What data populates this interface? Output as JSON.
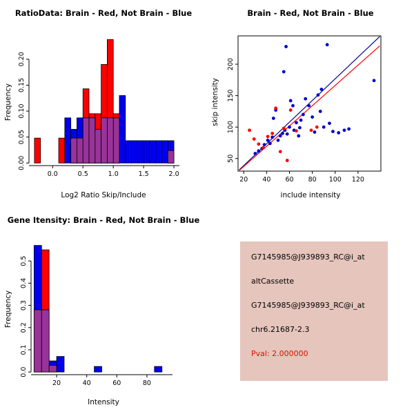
{
  "window": {
    "background": "#FFFFFF"
  },
  "colors": {
    "brain_red": "#FF0000",
    "not_brain_blue": "#0000EE",
    "overlap_purple": "#993399",
    "scatter_blue": "#0000CD",
    "regression_navy": "#00008B",
    "regression_red": "#FF0000",
    "info_bg": "#E5C5BC",
    "pval_red": "#DD1100",
    "text_black": "#000000"
  },
  "chart_data": [
    {
      "type": "bar",
      "subtype": "overlaid-histogram",
      "title": "RatioData: Brain - Red, Not Brain - Blue",
      "xlabel": "Log2 Ratio Skip/Include",
      "ylabel": "Frequency",
      "xlim": [
        -0.39,
        2.09
      ],
      "ylim": [
        -0.005,
        0.245
      ],
      "bin_width": 0.1,
      "xticks": [
        0,
        0.5,
        1,
        1.5,
        2
      ],
      "xtick_labels": [
        "0.0",
        "0.5",
        "1.0",
        "1.5",
        "2.0"
      ],
      "yticks": [
        0,
        0.05,
        0.1,
        0.15,
        0.2
      ],
      "ytick_labels": [
        "0.00",
        "0.05",
        "0.10",
        "0.15",
        "0.20"
      ],
      "overlap_color": "#993399",
      "series": [
        {
          "name": "Brain",
          "color": "#FF0000",
          "bins": [
            [
              -0.3,
              0.048
            ],
            [
              0.1,
              0.048
            ],
            [
              0.3,
              0.048
            ],
            [
              0.4,
              0.048
            ],
            [
              0.5,
              0.143
            ],
            [
              0.6,
              0.095
            ],
            [
              0.7,
              0.095
            ],
            [
              0.8,
              0.19
            ],
            [
              0.9,
              0.238
            ],
            [
              1,
              0.095
            ],
            [
              1.9,
              0.024
            ]
          ]
        },
        {
          "name": "Not Brain",
          "color": "#0000EE",
          "bins": [
            [
              0.2,
              0.087
            ],
            [
              0.3,
              0.065
            ],
            [
              0.4,
              0.087
            ],
            [
              0.5,
              0.087
            ],
            [
              0.6,
              0.087
            ],
            [
              0.7,
              0.065
            ],
            [
              0.8,
              0.087
            ],
            [
              0.9,
              0.087
            ],
            [
              1,
              0.087
            ],
            [
              1.1,
              0.13
            ],
            [
              1.2,
              0.043
            ],
            [
              1.3,
              0.043
            ],
            [
              1.4,
              0.043
            ],
            [
              1.5,
              0.043
            ],
            [
              1.6,
              0.043
            ],
            [
              1.7,
              0.043
            ],
            [
              1.8,
              0.043
            ],
            [
              1.9,
              0.043
            ]
          ]
        }
      ]
    },
    {
      "type": "scatter",
      "title": "Brain - Red, Not Brain - Blue",
      "xlabel": "include intensity",
      "ylabel": "skip intensity",
      "xlim": [
        15,
        140
      ],
      "ylim": [
        30,
        245
      ],
      "xticks": [
        20,
        40,
        60,
        80,
        100,
        120
      ],
      "xtick_labels": [
        "20",
        "40",
        "60",
        "80",
        "100",
        "120"
      ],
      "yticks": [
        50,
        100,
        150,
        200
      ],
      "ytick_labels": [
        "50",
        "100",
        "150",
        "200"
      ],
      "lines": [
        {
          "x1": 16,
          "y1": 32,
          "x2": 139,
          "y2": 244,
          "color": "#00008B"
        },
        {
          "x1": 16,
          "y1": 31,
          "x2": 139,
          "y2": 229,
          "color": "#FF0000"
        }
      ],
      "series": [
        {
          "name": "Not Brain",
          "color": "#0000CD",
          "points": [
            [
              30,
              58
            ],
            [
              33,
              62
            ],
            [
              36,
              66
            ],
            [
              38,
              72
            ],
            [
              41,
              79
            ],
            [
              43,
              74
            ],
            [
              45,
              84
            ],
            [
              46,
              114
            ],
            [
              48,
              127
            ],
            [
              50,
              79
            ],
            [
              52,
              86
            ],
            [
              54,
              90
            ],
            [
              55,
              188
            ],
            [
              56,
              95
            ],
            [
              57,
              228
            ],
            [
              58,
              89
            ],
            [
              60,
              100
            ],
            [
              61,
              142
            ],
            [
              63,
              134
            ],
            [
              64,
              95
            ],
            [
              66,
              107
            ],
            [
              68,
              86
            ],
            [
              69,
              99
            ],
            [
              70,
              111
            ],
            [
              72,
              120
            ],
            [
              74,
              145
            ],
            [
              77,
              134
            ],
            [
              80,
              116
            ],
            [
              82,
              92
            ],
            [
              85,
              151
            ],
            [
              87,
              125
            ],
            [
              88,
              160
            ],
            [
              90,
              100
            ],
            [
              93,
              231
            ],
            [
              95,
              106
            ],
            [
              98,
              93
            ],
            [
              103,
              91
            ],
            [
              108,
              95
            ],
            [
              112,
              97
            ],
            [
              134,
              174
            ]
          ]
        },
        {
          "name": "Brain",
          "color": "#FF0000",
          "points": [
            [
              25,
              95
            ],
            [
              29,
              81
            ],
            [
              33,
              73
            ],
            [
              37,
              67
            ],
            [
              41,
              85
            ],
            [
              45,
              90
            ],
            [
              48,
              130
            ],
            [
              52,
              61
            ],
            [
              55,
              98
            ],
            [
              58,
              47
            ],
            [
              61,
              127
            ],
            [
              66,
              94
            ],
            [
              79,
              95
            ],
            [
              84,
              100
            ]
          ]
        }
      ]
    },
    {
      "type": "bar",
      "subtype": "overlaid-histogram",
      "title": "Gene Itensity: Brain - Red, Not Brain - Blue",
      "xlabel": "Intensity",
      "ylabel": "Frequency",
      "xlim": [
        3,
        97
      ],
      "ylim": [
        -0.012,
        0.6
      ],
      "bin_width": 5,
      "xticks": [
        20,
        40,
        60,
        80
      ],
      "xtick_labels": [
        "20",
        "40",
        "60",
        "80"
      ],
      "yticks": [
        0,
        0.1,
        0.2,
        0.3,
        0.4,
        0.5
      ],
      "ytick_labels": [
        "0.0",
        "0.1",
        "0.2",
        "0.3",
        "0.4",
        "0.5"
      ],
      "overlap_color": "#993399",
      "series": [
        {
          "name": "Brain",
          "color": "#FF0000",
          "bins": [
            [
              5,
              0.28
            ],
            [
              10,
              0.55
            ],
            [
              15,
              0.03
            ]
          ]
        },
        {
          "name": "Not Brain",
          "color": "#0000EE",
          "bins": [
            [
              5,
              0.57
            ],
            [
              10,
              0.28
            ],
            [
              15,
              0.05
            ],
            [
              20,
              0.07
            ],
            [
              45,
              0.025
            ],
            [
              85,
              0.025
            ]
          ]
        }
      ]
    }
  ],
  "info_panel": {
    "lines": [
      {
        "text": "G7145985@J939893_RC@i_at",
        "color": "#000000"
      },
      {
        "text": "altCassette",
        "color": "#000000"
      },
      {
        "text": "G7145985@J939893_RC@i_at",
        "color": "#000000"
      },
      {
        "text": "chr6.21687-2.3",
        "color": "#000000"
      },
      {
        "text": "Pval: 2.000000",
        "color": "#DD1100"
      }
    ]
  }
}
